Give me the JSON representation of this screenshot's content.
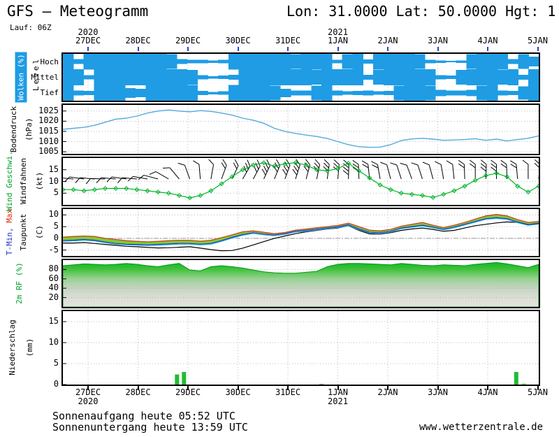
{
  "header": {
    "title": "GFS – Meteogramm",
    "location": "Lon: 31.0000 Lat: 50.0000 Hgt: 1",
    "run": "Lauf: 06Z"
  },
  "footer": {
    "sunrise": "Sonnenaufgang heute 05:52 UTC",
    "sunset": "Sonnenuntergang heute 13:59 UTC",
    "website": "www.wetterzentrale.de"
  },
  "time_axis": {
    "dates": [
      "27DEC",
      "28DEC",
      "29DEC",
      "30DEC",
      "31DEC",
      "1JAN",
      "2JAN",
      "3JAN",
      "4JAN",
      "5JAN"
    ],
    "years": [
      {
        "label": "2020",
        "date_index": 0
      },
      {
        "label": "2021",
        "date_index": 5
      }
    ]
  },
  "colors": {
    "cloud_blue": "#1f9ce4",
    "pressure_line": "#55aadd",
    "wind_green": "#00b428",
    "temp_max_red": "#cc4422",
    "temp_min_blue": "#2233cc",
    "temp_min_cyan": "#22bbdd",
    "dewpoint_black": "#000000",
    "temp_fill": "#7fcb32",
    "rf_green": "#00b41e",
    "precip_green": "#22bb33",
    "precip_pale": "#99dd88",
    "precip_trace_red": "#e08888",
    "grid_gray": "#bbbbbb",
    "top_tick_blue": "#2244cc"
  },
  "chart_data": [
    {
      "id": "clouds",
      "type": "area",
      "title": "Wolken (%)",
      "ylabel2": "Level",
      "row_labels": [
        "Hoch",
        "Mittel",
        "Tief"
      ],
      "note": "cloud cover fraction (0-1) per level, left to right 27DEC06Z-5JAN",
      "series": [
        {
          "name": "Hoch",
          "values": [
            1,
            0.3,
            1,
            1,
            1,
            1,
            1,
            1,
            1,
            1,
            0.9,
            0.3,
            0.2,
            0.2,
            0.15,
            0.2,
            1,
            1,
            1,
            1,
            1,
            1,
            0.9,
            1,
            1,
            1,
            0.2,
            0.9,
            1,
            0.25,
            1,
            1,
            1,
            1,
            0.9,
            0.2,
            0.15,
            0.1,
            0.15,
            0.9,
            1,
            1,
            1,
            0.3,
            0.9,
            0.6
          ]
        },
        {
          "name": "Mittel",
          "values": [
            1,
            1,
            0.25,
            1,
            1,
            1,
            1,
            1,
            1,
            1,
            1,
            1,
            0.9,
            0.25,
            0.15,
            0.2,
            0.3,
            1,
            1,
            1,
            1,
            1,
            1,
            1,
            0.9,
            1,
            1,
            1,
            1,
            0.3,
            0.9,
            1,
            1,
            1,
            1,
            1,
            0.25,
            0.2,
            0.9,
            1,
            1,
            1,
            0.9,
            1,
            0.3,
            1
          ]
        },
        {
          "name": "Tief",
          "values": [
            1,
            0.3,
            0.25,
            1,
            1,
            1,
            0.6,
            0.5,
            1,
            1,
            1,
            1,
            1,
            0.25,
            0.15,
            0.2,
            1,
            1,
            1,
            1,
            0.9,
            0.5,
            0.3,
            0.3,
            0.9,
            1,
            0.3,
            0.2,
            0.25,
            0.3,
            0.2,
            0.25,
            0.9,
            1,
            1,
            0.9,
            0.4,
            0.3,
            0.3,
            0.4,
            0.9,
            1,
            0.3,
            0.25,
            0.8,
            1
          ]
        }
      ]
    },
    {
      "id": "pressure",
      "type": "line",
      "ylabel": "Bodendruck",
      "unit": "(hPa)",
      "yticks": [
        1025,
        1020,
        1015,
        1010,
        1005
      ],
      "ylim": [
        1004,
        1028
      ],
      "values": [
        1016,
        1016.5,
        1017,
        1018,
        1019.5,
        1021,
        1021.5,
        1022.5,
        1024,
        1025,
        1025.5,
        1025,
        1024.6,
        1025.2,
        1024.8,
        1024,
        1023,
        1021.5,
        1020.5,
        1019,
        1016.5,
        1015,
        1014,
        1013.2,
        1012.5,
        1011.5,
        1010,
        1008.5,
        1007.5,
        1007.2,
        1007.3,
        1008.5,
        1010.5,
        1011.3,
        1011.6,
        1011.2,
        1010.6,
        1010.8,
        1011,
        1011.4,
        1010.6,
        1011.2,
        1010.3,
        1011,
        1011.6,
        1012.8
      ]
    },
    {
      "id": "wind",
      "type": "line",
      "ylabel": "Wind Geschwi.",
      "ylabel2": "Windfahnen",
      "unit": "(kt)",
      "yticks": [
        15,
        10,
        5
      ],
      "ylim": [
        0,
        20
      ],
      "values": [
        6.5,
        6.5,
        6,
        6.5,
        7,
        7,
        7,
        6.5,
        6,
        5.5,
        5,
        4,
        3,
        4,
        6,
        9,
        12,
        15,
        17,
        18,
        16.5,
        17.5,
        18,
        17,
        15,
        14.5,
        15.5,
        17.8,
        14.5,
        11.5,
        8.5,
        6.5,
        5,
        4.5,
        4,
        3.2,
        4.5,
        6,
        8,
        10.5,
        12.5,
        13.5,
        12,
        8,
        5.5,
        8
      ],
      "barb_dirs_deg": [
        -175,
        -175,
        -172,
        -175,
        -178,
        -175,
        -172,
        -175,
        -170,
        -165,
        -150,
        -130,
        -110,
        -95,
        -80,
        -70,
        -65,
        -60,
        -62,
        -65,
        -68,
        -70,
        -72,
        -75,
        -78,
        -82,
        -85,
        -88,
        -92,
        -96,
        -100,
        -105,
        -108,
        -110,
        -108,
        -105,
        -100,
        -96,
        -92,
        -90,
        -88,
        -90,
        -92,
        -95,
        -90,
        -85
      ]
    },
    {
      "id": "temperature",
      "type": "line",
      "ylabel_min": "T-Min,",
      "ylabel_max": " Max",
      "ylabel2": "Taupunkt",
      "unit": "(C)",
      "yticks": [
        10,
        5,
        0,
        -5
      ],
      "ylim": [
        -7.5,
        12.5
      ],
      "series": [
        {
          "name": "T-Max",
          "values": [
            0.5,
            0.8,
            1,
            0.8,
            0,
            -0.5,
            -1,
            -1.3,
            -1.5,
            -1.3,
            -1,
            -0.8,
            -0.8,
            -1.2,
            -0.8,
            0.3,
            1.5,
            2.8,
            3.2,
            2.6,
            2,
            2.5,
            3.5,
            4,
            4.5,
            5,
            5.5,
            6.5,
            5,
            3.5,
            3.2,
            3.8,
            5.2,
            6,
            6.8,
            5.6,
            4.6,
            5.6,
            6.8,
            8.2,
            9.6,
            10.2,
            9.6,
            8,
            6.8,
            7.2
          ]
        },
        {
          "name": "T-Min",
          "values": [
            -1,
            -0.8,
            -0.5,
            -0.8,
            -1.6,
            -2.2,
            -2.5,
            -2.6,
            -2.8,
            -2.6,
            -2.4,
            -2.2,
            -2.2,
            -2.5,
            -2.2,
            -1,
            0.4,
            1.6,
            2.4,
            1.8,
            1.4,
            2,
            3,
            3.4,
            3.9,
            4.4,
            4.9,
            5.8,
            4,
            2.6,
            2.4,
            3,
            4.4,
            5,
            5.6,
            4.8,
            3.9,
            4.8,
            6,
            7.2,
            8.4,
            8.8,
            8.4,
            7,
            5.9,
            6.4
          ]
        },
        {
          "name": "Taupunkt",
          "values": [
            -2,
            -2,
            -1.8,
            -2.2,
            -2.6,
            -3,
            -3.4,
            -3.6,
            -3.9,
            -4.1,
            -4,
            -3.8,
            -3.6,
            -4.2,
            -4.8,
            -5.3,
            -5.2,
            -4.2,
            -2.8,
            -1.4,
            0,
            1,
            2,
            2.8,
            3.4,
            4,
            4.4,
            5.4,
            3.4,
            1.9,
            1.8,
            2.4,
            3.4,
            4,
            4.4,
            3.8,
            3,
            3.4,
            4.4,
            5.4,
            6,
            6.6,
            7,
            6.8,
            5.7,
            6.2
          ]
        }
      ]
    },
    {
      "id": "humidity",
      "type": "area",
      "ylabel": "2m RF (%)",
      "yticks": [
        80,
        60,
        40,
        20
      ],
      "ylim": [
        0,
        100
      ],
      "values": [
        88,
        90,
        92,
        91,
        90,
        91,
        93,
        91,
        88,
        86,
        90,
        93,
        79,
        77,
        86,
        88,
        86,
        83,
        79,
        75,
        73,
        72,
        72,
        74,
        76,
        86,
        91,
        93,
        93,
        92,
        91,
        90,
        93,
        91,
        89,
        88,
        90,
        89,
        88,
        91,
        93,
        95,
        92,
        88,
        84,
        91
      ]
    },
    {
      "id": "precipitation",
      "type": "bar",
      "ylabel": "Niederschlag",
      "unit": "(mm)",
      "yticks": [
        15,
        10,
        5,
        0
      ],
      "ylim": [
        0,
        17.5
      ],
      "bars": [
        {
          "day": 1.78,
          "mm": 2.4,
          "kind": "green"
        },
        {
          "day": 1.92,
          "mm": 3.0,
          "kind": "green"
        },
        {
          "day": 4.67,
          "mm": 0.2,
          "kind": "trace"
        },
        {
          "day": 8.57,
          "mm": 3.0,
          "kind": "green"
        },
        {
          "day": 8.72,
          "mm": 0.3,
          "kind": "pale"
        }
      ]
    }
  ]
}
